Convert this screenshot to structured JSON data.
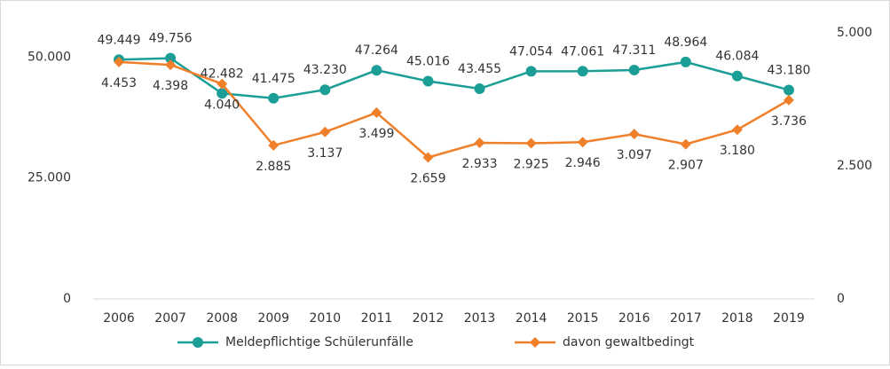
{
  "chart_data": {
    "type": "line",
    "categories": [
      "2006",
      "2007",
      "2008",
      "2009",
      "2010",
      "2011",
      "2012",
      "2013",
      "2014",
      "2015",
      "2016",
      "2017",
      "2018",
      "2019"
    ],
    "series": [
      {
        "name": "Meldepflichtige Schülerunfälle",
        "color": "#1a9e96",
        "marker": "circle",
        "values": [
          49449,
          49756,
          42482,
          41475,
          43230,
          47264,
          45016,
          43455,
          47054,
          47061,
          47311,
          48964,
          46084,
          43180
        ],
        "value_labels": [
          "49.449",
          "49.756",
          "42.482",
          "41.475",
          "43.230",
          "47.264",
          "45.016",
          "43.455",
          "47.054",
          "47.061",
          "47.311",
          "48.964",
          "46.084",
          "43.180"
        ]
      },
      {
        "name": "davon gewaltbedingt",
        "color": "#f07f2a",
        "marker": "diamond",
        "axis": "y2",
        "values": [
          4453,
          4398,
          4040,
          2885,
          3137,
          3499,
          2659,
          2933,
          2925,
          2946,
          3097,
          2907,
          3180,
          3736
        ],
        "value_labels": [
          "4.453",
          "4.398",
          "4.040",
          "2.885",
          "3.137",
          "3.499",
          "2.659",
          "2.933",
          "2.925",
          "2.946",
          "3.097",
          "2.907",
          "3.180",
          "3.736"
        ]
      }
    ],
    "ylim": [
      0,
      55000
    ],
    "yticks": [
      0,
      {
        "value": 25000,
        "label": "25.000"
      },
      {
        "value": 50000,
        "label": "50.000"
      }
    ],
    "y2lim": [
      0,
      5000
    ],
    "y2ticks": [
      0,
      {
        "value": 2500,
        "label": "2.500"
      },
      {
        "value": 5000,
        "label": "5.000"
      }
    ],
    "legend": "bottom"
  }
}
